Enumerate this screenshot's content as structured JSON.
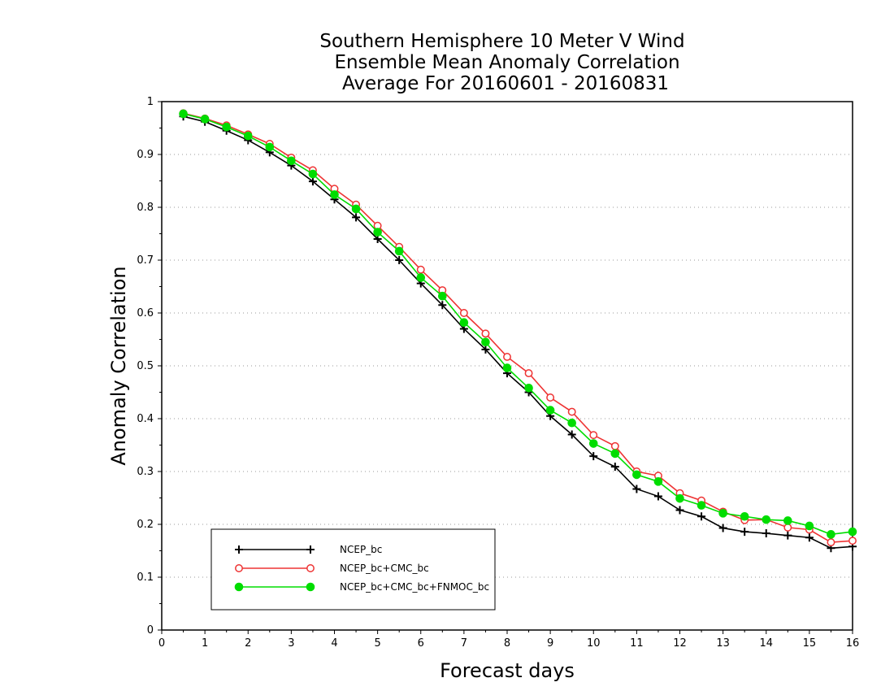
{
  "chart_data": {
    "type": "line",
    "title": [
      "Southern Hemisphere 10 Meter V Wind",
      "Ensemble Mean Anomaly Correlation",
      "Average For 20160601 - 20160831"
    ],
    "xlabel": "Forecast days",
    "ylabel": "Anomaly Correlation",
    "xlim": [
      0,
      16
    ],
    "ylim": [
      0,
      1
    ],
    "xticks": [
      "0",
      "1",
      "2",
      "3",
      "4",
      "5",
      "6",
      "7",
      "8",
      "9",
      "10",
      "11",
      "12",
      "13",
      "14",
      "15",
      "16"
    ],
    "yticks": [
      "0",
      "0.1",
      "0.2",
      "0.3",
      "0.4",
      "0.5",
      "0.6",
      "0.7",
      "0.8",
      "0.9",
      "1"
    ],
    "grid": "horizontal dotted",
    "legend_position": "bottom-left",
    "x": [
      0.5,
      1,
      1.5,
      2,
      2.5,
      3,
      3.5,
      4,
      4.5,
      5,
      5.5,
      6,
      6.5,
      7,
      7.5,
      8,
      8.5,
      9,
      9.5,
      10,
      10.5,
      11,
      11.5,
      12,
      12.5,
      13,
      13.5,
      14,
      14.5,
      15,
      15.5,
      16
    ],
    "series": [
      {
        "name": "NCEP_bc",
        "color": "#000000",
        "marker": "plus",
        "values": [
          0.972,
          0.962,
          0.945,
          0.927,
          0.904,
          0.879,
          0.849,
          0.815,
          0.781,
          0.74,
          0.7,
          0.656,
          0.615,
          0.57,
          0.531,
          0.486,
          0.45,
          0.405,
          0.37,
          0.329,
          0.309,
          0.267,
          0.253,
          0.227,
          0.215,
          0.193,
          0.186,
          0.183,
          0.179,
          0.175,
          0.155,
          0.158
        ]
      },
      {
        "name": "NCEP_bc+CMC_bc",
        "color": "#ee3333",
        "marker": "open-circle",
        "values": [
          0.978,
          0.968,
          0.955,
          0.938,
          0.92,
          0.894,
          0.87,
          0.835,
          0.805,
          0.765,
          0.725,
          0.682,
          0.643,
          0.6,
          0.561,
          0.517,
          0.486,
          0.44,
          0.413,
          0.369,
          0.348,
          0.3,
          0.292,
          0.259,
          0.245,
          0.224,
          0.208,
          0.209,
          0.194,
          0.19,
          0.166,
          0.169
        ]
      },
      {
        "name": "NCEP_bc+CMC_bc+FNMOC_bc",
        "color": "#00dd00",
        "marker": "filled-circle",
        "values": [
          0.977,
          0.967,
          0.952,
          0.935,
          0.914,
          0.888,
          0.863,
          0.824,
          0.797,
          0.753,
          0.717,
          0.667,
          0.632,
          0.582,
          0.545,
          0.496,
          0.458,
          0.416,
          0.392,
          0.353,
          0.334,
          0.294,
          0.281,
          0.249,
          0.236,
          0.221,
          0.215,
          0.209,
          0.207,
          0.197,
          0.181,
          0.186
        ]
      }
    ]
  }
}
